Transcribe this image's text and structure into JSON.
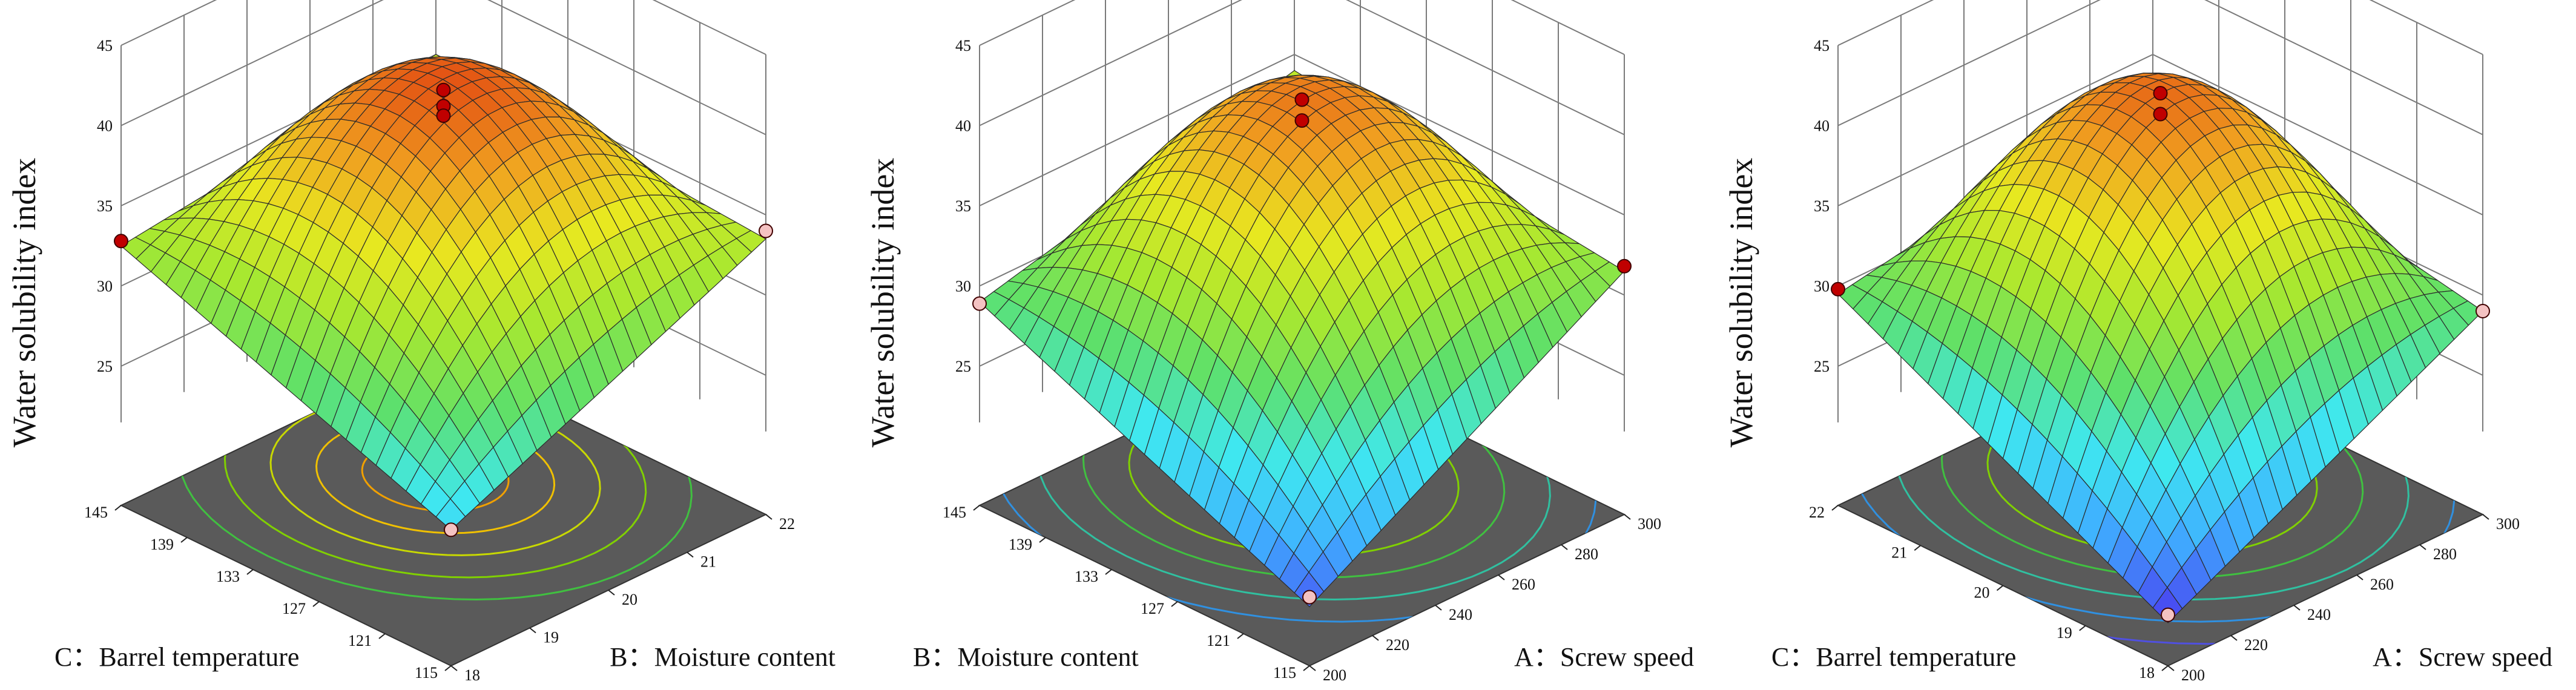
{
  "figure": {
    "panels": [
      {
        "zlabel": "Water solubility index",
        "x_label": "C：Barrel temperature",
        "y_label": "B：Moisture content",
        "x_ticks": [
          "145",
          "139",
          "133",
          "127",
          "121",
          "115"
        ],
        "y_ticks": [
          "18",
          "19",
          "20",
          "21",
          "22"
        ],
        "z_ticks": [
          "25",
          "30",
          "35",
          "40",
          "45"
        ]
      },
      {
        "zlabel": "Water solubility index",
        "x_label": "B：Moisture content",
        "y_label": "A：Screw speed",
        "x_ticks": [
          "145",
          "139",
          "133",
          "127",
          "121",
          "115"
        ],
        "y_ticks": [
          "200",
          "220",
          "240",
          "260",
          "280",
          "300"
        ],
        "z_ticks": [
          "25",
          "30",
          "35",
          "40",
          "45"
        ]
      },
      {
        "zlabel": "Water solubility index",
        "x_label": "C：Barrel temperature",
        "y_label": "A：Screw speed",
        "x_ticks": [
          "22",
          "21",
          "20",
          "19",
          "18"
        ],
        "y_ticks": [
          "200",
          "220",
          "240",
          "260",
          "280",
          "300"
        ],
        "z_ticks": [
          "25",
          "30",
          "35",
          "40",
          "45"
        ]
      }
    ]
  },
  "chart_data": [
    {
      "type": "surface",
      "x_axis": {
        "label": "C：Barrel temperature",
        "range": [
          115,
          145
        ]
      },
      "y_axis": {
        "label": "B：Moisture content",
        "range": [
          18,
          22
        ]
      },
      "z_axis": {
        "label": "Water solubility index",
        "range": [
          25,
          45
        ]
      },
      "surface_model": {
        "peak": 42.0,
        "corners": {
          "left": 32.5,
          "right": 33.5,
          "front": 24.8,
          "back": 35.0
        }
      },
      "design_points": [
        {
          "x": 130,
          "y": 20,
          "z": 42.5,
          "color": "#c00000"
        },
        {
          "x": 130,
          "y": 20,
          "z": 41.5,
          "color": "#c00000"
        },
        {
          "x": 130,
          "y": 20,
          "z": 40.9,
          "color": "#c00000"
        },
        {
          "x": 145,
          "y": 18,
          "z": 32.8,
          "color": "#c00000"
        },
        {
          "x": 115,
          "y": 22,
          "z": 34.0,
          "color": "#f4c2c2"
        },
        {
          "x": 115,
          "y": 18,
          "z": 24.8,
          "color": "#f4c2c2"
        }
      ],
      "contour_colors": [
        "#f0a000",
        "#f0c000",
        "#c8d800",
        "#80d000",
        "#40c040"
      ],
      "grid": true
    },
    {
      "type": "surface",
      "x_axis": {
        "label": "B：Moisture content",
        "range": [
          115,
          145
        ]
      },
      "y_axis": {
        "label": "A：Screw speed",
        "range": [
          200,
          300
        ]
      },
      "z_axis": {
        "label": "Water solubility index",
        "range": [
          25,
          45
        ]
      },
      "surface_model": {
        "peak": 40.5,
        "corners": {
          "left": 29.0,
          "right": 31.5,
          "front": 20.0,
          "back": 34.0
        }
      },
      "design_points": [
        {
          "x": 130,
          "y": 250,
          "z": 41.9,
          "color": "#c00000"
        },
        {
          "x": 130,
          "y": 250,
          "z": 40.6,
          "color": "#c00000"
        },
        {
          "x": 145,
          "y": 200,
          "z": 28.9,
          "color": "#f4c2c2"
        },
        {
          "x": 115,
          "y": 300,
          "z": 31.8,
          "color": "#c00000"
        },
        {
          "x": 115,
          "y": 200,
          "z": 20.6,
          "color": "#f4c2c2"
        }
      ],
      "contour_colors": [
        "#f0c000",
        "#c8d800",
        "#80d000",
        "#40c040",
        "#30c0a0",
        "#3090e0"
      ],
      "grid": true
    },
    {
      "type": "surface",
      "x_axis": {
        "label": "C：Barrel temperature",
        "range": [
          18,
          22
        ]
      },
      "y_axis": {
        "label": "A：Screw speed",
        "range": [
          200,
          300
        ]
      },
      "z_axis": {
        "label": "Water solubility index",
        "range": [
          25,
          45
        ]
      },
      "surface_model": {
        "peak": 41.0,
        "corners": {
          "left": 29.5,
          "right": 29.0,
          "front": 19.0,
          "back": 33.0
        }
      },
      "design_points": [
        {
          "x": 20,
          "y": 250,
          "z": 42.3,
          "color": "#c00000"
        },
        {
          "x": 20,
          "y": 250,
          "z": 41.0,
          "color": "#c00000"
        },
        {
          "x": 22,
          "y": 200,
          "z": 29.8,
          "color": "#c00000"
        },
        {
          "x": 18,
          "y": 300,
          "z": 29.0,
          "color": "#f4c2c2"
        },
        {
          "x": 18,
          "y": 200,
          "z": 19.5,
          "color": "#f4c2c2"
        }
      ],
      "contour_colors": [
        "#f0c000",
        "#c8d800",
        "#80d000",
        "#40c040",
        "#30c0a0",
        "#3090e0",
        "#5050e0"
      ],
      "grid": true
    }
  ]
}
